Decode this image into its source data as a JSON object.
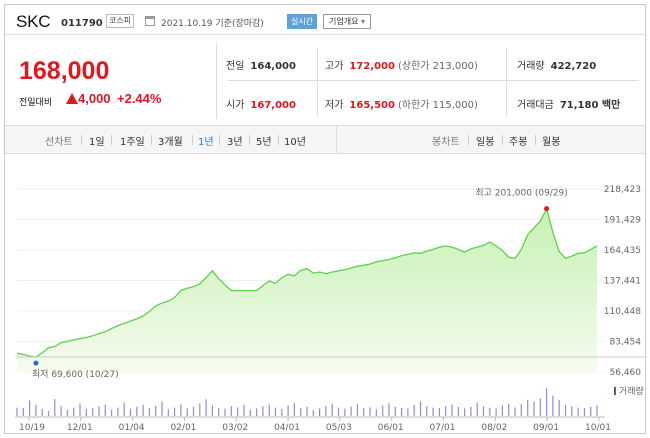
{
  "header": {
    "name": "SKC",
    "code": "011790",
    "market": "코스피",
    "date": "2021.10.19 기준(장마감)",
    "realtime": "실시간",
    "company": "기업개요",
    "company_arrow": "▾"
  },
  "quote": {
    "price": "168,000",
    "prev_label": "전일대비",
    "change": "4,000",
    "pct": "+2.44%"
  },
  "stats": {
    "prev": {
      "label": "전일",
      "value": "164,000"
    },
    "high": {
      "label": "고가",
      "value": "172,000",
      "sub": "(상한가 213,000)"
    },
    "volume": {
      "label": "거래량",
      "value": "422,720"
    },
    "open": {
      "label": "시가",
      "value": "167,000"
    },
    "low": {
      "label": "저가",
      "value": "165,500",
      "sub": "(하한가 115,000)"
    },
    "amount": {
      "label": "거래대금",
      "value": "71,180 백만"
    }
  },
  "tabs": {
    "line_label": "선차트",
    "line_tabs": [
      "1일",
      "1주일",
      "3개월",
      "1년",
      "3년",
      "5년",
      "10년"
    ],
    "active": "1년",
    "candle_label": "봉차트",
    "candle_tabs": [
      "일봉",
      "주봉",
      "월봉"
    ]
  },
  "chart": {
    "high_label": "최고 201,000 (09/29)",
    "low_label": "최저 69,600 (10/27)",
    "volume_label": "거래량",
    "y_ticks": [
      "218,423",
      "191,429",
      "164,435",
      "137,441",
      "110,448",
      "83,454",
      "56,460"
    ],
    "x_ticks": [
      "10/19",
      "12/01",
      "01/04",
      "02/01",
      "03/02",
      "04/01",
      "05/03",
      "06/01",
      "07/01",
      "08/02",
      "09/01",
      "10/01"
    ],
    "colors": {
      "line": "#5fd14e",
      "fill_top": "#c7f0b3",
      "fill_bottom": "#f4fcef",
      "high": "#e0171d",
      "low": "#1f6fd1",
      "volume": "#9d86d4"
    }
  },
  "chart_data": {
    "type": "area",
    "title": "",
    "ylim": [
      56460,
      218423
    ],
    "y_ticks": [
      218423,
      191429,
      164435,
      137441,
      110448,
      83454,
      56460
    ],
    "x_ticks": [
      "10/19",
      "12/01",
      "01/04",
      "02/01",
      "03/02",
      "04/01",
      "05/03",
      "06/01",
      "07/01",
      "08/02",
      "09/01",
      "10/01"
    ],
    "series": [
      {
        "values": [
          73000,
          72000,
          70500,
          69600,
          73500,
          78000,
          79000,
          82500,
          83500,
          85000,
          86000,
          87000,
          88500,
          90500,
          92000,
          95000,
          97500,
          99500,
          101500,
          103500,
          106000,
          110000,
          115000,
          117500,
          119000,
          122500,
          128500,
          130500,
          132000,
          134500,
          140000,
          146000,
          139000,
          133500,
          128500,
          128500,
          128500,
          128500,
          128500,
          133000,
          137000,
          135000,
          140000,
          143000,
          141500,
          146500,
          148000,
          144000,
          145000,
          143500,
          145000,
          146000,
          147000,
          148500,
          150000,
          151000,
          152000,
          154000,
          155000,
          156000,
          157500,
          159500,
          160500,
          162000,
          161500,
          163500,
          165000,
          167000,
          168000,
          167000,
          165000,
          162500,
          165500,
          167000,
          168500,
          171500,
          168000,
          164000,
          158000,
          157000,
          165000,
          178000,
          184000,
          190000,
          201000,
          180000,
          163000,
          157000,
          159000,
          161500,
          162000,
          165000,
          168000
        ]
      }
    ],
    "volume": [
      30,
      28,
      55,
      40,
      25,
      18,
      60,
      35,
      22,
      30,
      45,
      25,
      28,
      35,
      40,
      22,
      30,
      48,
      26,
      33,
      40,
      28,
      36,
      52,
      24,
      30,
      42,
      27,
      33,
      45,
      60,
      38,
      29,
      26,
      35,
      31,
      40,
      22,
      27,
      35,
      41,
      30,
      25,
      38,
      46,
      29,
      33,
      21,
      27,
      36,
      44,
      30,
      26,
      34,
      42,
      28,
      31,
      24,
      37,
      45,
      33,
      29,
      26,
      40,
      52,
      35,
      30,
      28,
      36,
      41,
      32,
      27,
      33,
      48,
      35,
      30,
      26,
      38,
      44,
      31,
      43,
      58,
      52,
      62,
      100,
      72,
      58,
      40,
      35,
      30,
      28,
      33,
      38
    ]
  }
}
